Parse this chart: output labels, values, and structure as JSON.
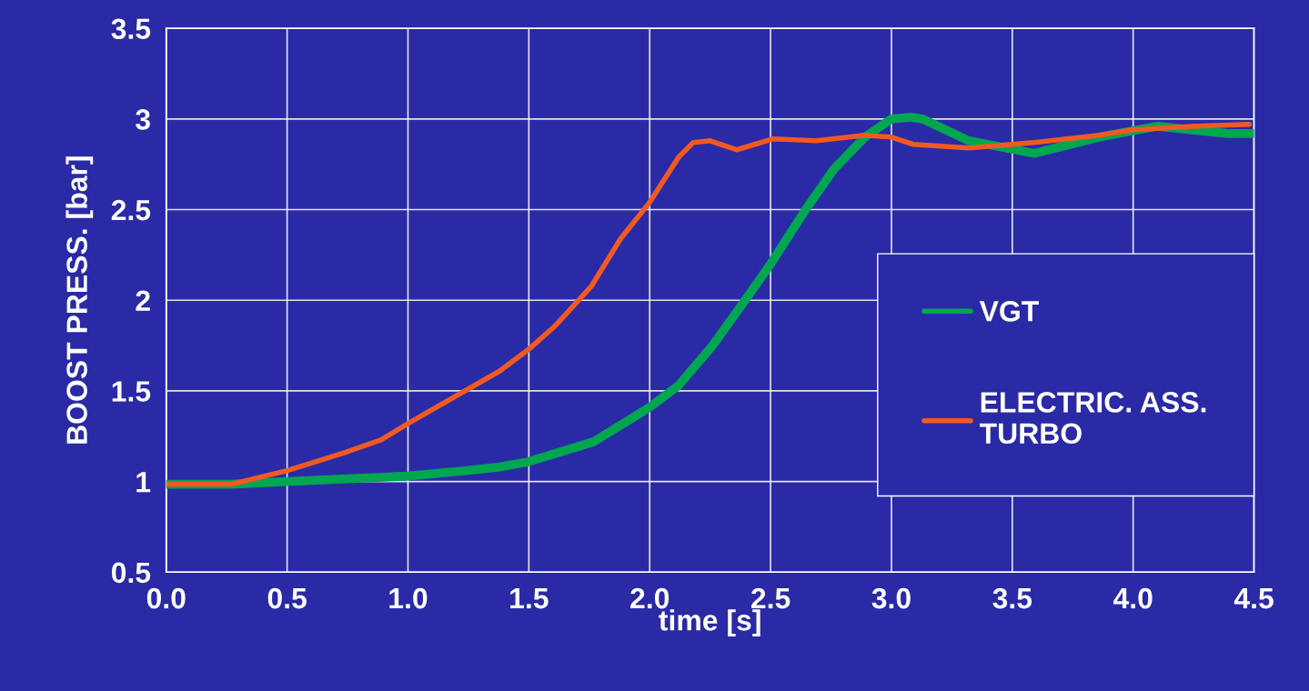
{
  "chart_data": {
    "type": "line",
    "xlabel": "time [s]",
    "ylabel": "BOOST PRESS. [bar]",
    "xlim": [
      0,
      4.5
    ],
    "ylim": [
      0.5,
      3.5
    ],
    "xticks": [
      {
        "value": 0,
        "label": "0.0"
      },
      0.5,
      {
        "value": 1,
        "label": "1.0"
      },
      1.5,
      {
        "value": 2,
        "label": "2.0"
      },
      2.5,
      {
        "value": 3,
        "label": "3.0"
      },
      3.5,
      {
        "value": 4,
        "label": "4.0"
      },
      4.5
    ],
    "yticks": [
      0.5,
      1,
      1.5,
      2,
      2.5,
      3,
      3.5
    ],
    "grid": true,
    "legend": "right",
    "line_style": "solid",
    "series": [
      {
        "name": "VGT",
        "color": "#00a650",
        "x": [
          0,
          0.27,
          0.5,
          1.0,
          1.24,
          1.38,
          1.5,
          1.77,
          2.0,
          2.12,
          2.26,
          2.4,
          2.5,
          2.64,
          2.76,
          2.89,
          3.0,
          3.08,
          3.13,
          3.32,
          3.59,
          3.86,
          4.1,
          4.39,
          4.5
        ],
        "values": [
          0.985,
          0.985,
          1.0,
          1.03,
          1.06,
          1.08,
          1.11,
          1.22,
          1.41,
          1.53,
          1.75,
          2.01,
          2.2,
          2.49,
          2.72,
          2.9,
          3.0,
          3.01,
          3.0,
          2.88,
          2.81,
          2.9,
          2.96,
          2.92,
          2.92
        ]
      },
      {
        "name": "ELECTRIC. ASS.\nTURBO",
        "color": "#f05a22",
        "x": [
          0,
          0.27,
          0.5,
          0.74,
          0.89,
          1.0,
          1.38,
          1.5,
          1.61,
          1.76,
          1.88,
          2.0,
          2.12,
          2.18,
          2.25,
          2.36,
          2.51,
          2.69,
          2.89,
          3.0,
          3.09,
          3.32,
          3.59,
          3.86,
          4.0,
          4.26,
          4.48
        ],
        "values": [
          0.985,
          0.985,
          1.06,
          1.16,
          1.23,
          1.32,
          1.61,
          1.73,
          1.86,
          2.08,
          2.34,
          2.54,
          2.79,
          2.87,
          2.88,
          2.83,
          2.89,
          2.88,
          2.91,
          2.9,
          2.86,
          2.84,
          2.87,
          2.91,
          2.94,
          2.96,
          2.97
        ]
      }
    ]
  }
}
